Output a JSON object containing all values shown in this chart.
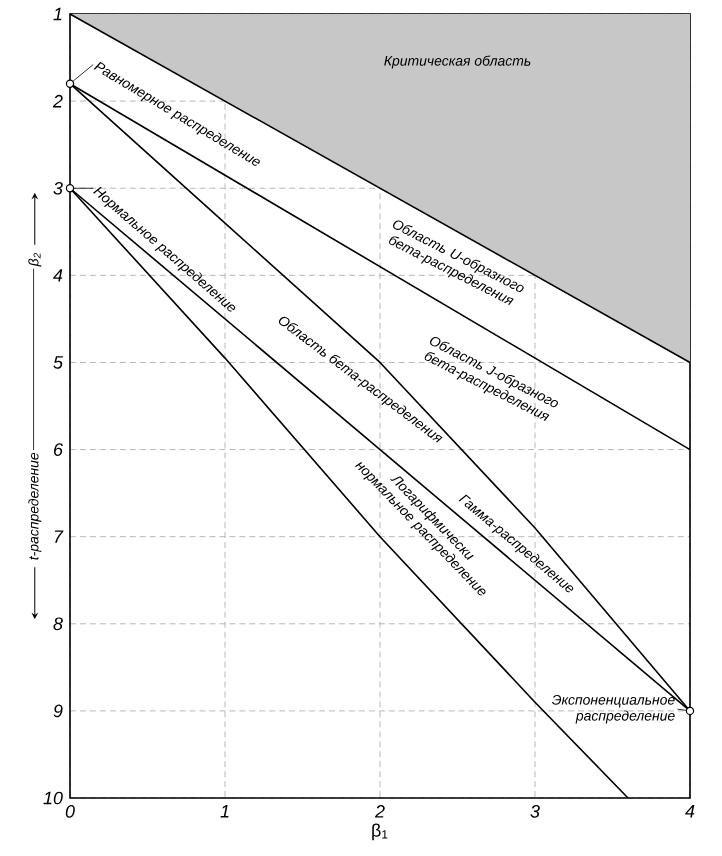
{
  "chart_data": {
    "type": "line",
    "xlabel": "β$_{1}$",
    "ylabel": "β$_{2}$",
    "xlim": [
      0,
      4
    ],
    "ylim": [
      10,
      1
    ],
    "xticks": [
      0,
      1,
      2,
      3,
      4
    ],
    "yticks": [
      1,
      2,
      3,
      4,
      5,
      6,
      7,
      8,
      9,
      10
    ],
    "grid": true,
    "series": [
      {
        "color": "#000000",
        "x": [
          0,
          4
        ],
        "values": [
          1,
          5
        ],
        "lower": [
          1,
          1
        ],
        "upper": [
          1,
          5
        ]
      },
      {
        "color": "#000000",
        "x": [
          0,
          4
        ],
        "values": [
          1.8,
          6
        ]
      },
      {
        "color": "#000000",
        "x": [
          0,
          1,
          2,
          3,
          4
        ],
        "values": [
          1.8,
          3.4,
          5.0,
          6.9,
          9.0
        ]
      },
      {
        "color": "#000000",
        "x": [
          0,
          1,
          2,
          3,
          4
        ],
        "values": [
          3,
          4.5,
          6,
          7.5,
          9
        ]
      },
      {
        "color": "#000000",
        "x": [
          0,
          1,
          2,
          3,
          3.6
        ],
        "values": [
          3,
          4.95,
          7.0,
          8.9,
          10
        ]
      },
      {
        "type": "scatter",
        "marker": "circle",
        "color": "#000000",
        "x": [
          0,
          0,
          4
        ],
        "values": [
          1.8,
          3,
          9
        ]
      }
    ],
    "annotations": [
      "Критическая область",
      "Равномерное распределение",
      "Нормальное распределение",
      "Область U-образного бета-распределения",
      "Область J-образного бета-распределения",
      "Область бета-распределения",
      "Гамма-распределение",
      "Логарифмически нормальное распределение",
      "Экспоненциальное распределение",
      "t-распределение"
    ]
  }
}
